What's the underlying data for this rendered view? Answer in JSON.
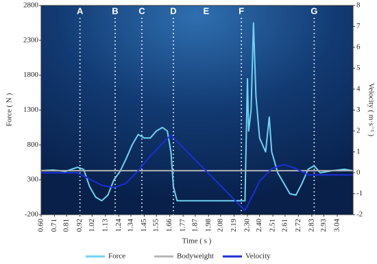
{
  "chart_data": {
    "type": "line",
    "x_label": "Time ( s )",
    "y_label": "Force ( N )",
    "y2_label": "Velocity ( m·s⁻¹ )",
    "xlim": [
      0.6,
      3.17
    ],
    "xticks": [
      {
        "value": 0.6,
        "label": "0.60"
      },
      {
        "value": 0.71,
        "label": "0.71"
      },
      {
        "value": 0.81,
        "label": "0.81"
      },
      {
        "value": 0.92,
        "label": "0.92"
      },
      {
        "value": 1.02,
        "label": "1.02"
      },
      {
        "value": 1.13,
        "label": "1.13"
      },
      {
        "value": 1.24,
        "label": "1.24"
      },
      {
        "value": 1.34,
        "label": "1.34"
      },
      {
        "value": 1.45,
        "label": "1.45"
      },
      {
        "value": 1.55,
        "label": "1.55"
      },
      {
        "value": 1.66,
        "label": "1.66"
      },
      {
        "value": 1.77,
        "label": "1.77"
      },
      {
        "value": 1.87,
        "label": "1.87"
      },
      {
        "value": 1.98,
        "label": "1.98"
      },
      {
        "value": 2.08,
        "label": "2.08"
      },
      {
        "value": 2.19,
        "label": "2.19"
      },
      {
        "value": 2.3,
        "label": "2.30"
      },
      {
        "value": 2.4,
        "label": "2.40"
      },
      {
        "value": 2.51,
        "label": "2.51"
      },
      {
        "value": 2.61,
        "label": "2.61"
      },
      {
        "value": 2.72,
        "label": "2.72"
      },
      {
        "value": 2.83,
        "label": "2.83"
      },
      {
        "value": 2.93,
        "label": "2.93"
      },
      {
        "value": 3.04,
        "label": "3.04"
      }
    ],
    "ylim": [
      -200,
      2800
    ],
    "yticks": [
      -200,
      300,
      800,
      1300,
      1800,
      2300,
      2800
    ],
    "y2lim": [
      -2,
      8
    ],
    "y2ticks": [
      -2,
      -1,
      0,
      1,
      2,
      3,
      4,
      5,
      6,
      7,
      8
    ],
    "phases": [
      {
        "label": "A",
        "x": 0.92,
        "line": true
      },
      {
        "label": "B",
        "x": 1.21,
        "line": true
      },
      {
        "label": "C",
        "x": 1.43,
        "line": true
      },
      {
        "label": "D",
        "x": 1.69,
        "line": true
      },
      {
        "label": "E",
        "x": 1.96,
        "line": false
      },
      {
        "label": "F",
        "x": 2.25,
        "line": true
      },
      {
        "label": "G",
        "x": 2.85,
        "line": true
      }
    ],
    "series": [
      {
        "name": "Force",
        "color": "#6fd3f2",
        "x": [
          0.6,
          0.7,
          0.8,
          0.9,
          0.95,
          1.0,
          1.05,
          1.1,
          1.15,
          1.2,
          1.25,
          1.3,
          1.35,
          1.4,
          1.45,
          1.5,
          1.55,
          1.6,
          1.64,
          1.67,
          1.69,
          1.72,
          2.28,
          2.3,
          2.31,
          2.33,
          2.35,
          2.37,
          2.4,
          2.45,
          2.48,
          2.5,
          2.55,
          2.6,
          2.65,
          2.7,
          2.75,
          2.8,
          2.85,
          2.9,
          3.0,
          3.1,
          3.17
        ],
        "values": [
          430,
          440,
          420,
          480,
          450,
          200,
          50,
          0,
          80,
          300,
          420,
          600,
          800,
          950,
          900,
          900,
          1000,
          1050,
          1000,
          700,
          200,
          0,
          0,
          1750,
          1000,
          1300,
          2550,
          1500,
          900,
          700,
          1200,
          700,
          400,
          250,
          100,
          80,
          250,
          450,
          500,
          400,
          430,
          450,
          430
        ]
      },
      {
        "name": "Bodyweight",
        "color": "#b4b4b4",
        "x": [
          0.6,
          3.17
        ],
        "values": [
          430,
          430
        ]
      },
      {
        "name": "Velocity",
        "color": "#1a2fd8",
        "axis": "y2",
        "x": [
          0.6,
          0.9,
          1.0,
          1.1,
          1.2,
          1.3,
          1.4,
          1.5,
          1.6,
          1.67,
          2.28,
          2.35,
          2.4,
          2.5,
          2.6,
          2.7,
          2.8,
          2.9,
          3.0,
          3.17
        ],
        "values": [
          0,
          0,
          -0.3,
          -0.6,
          -0.7,
          -0.5,
          0.1,
          0.8,
          1.4,
          1.8,
          -1.8,
          -1.0,
          -0.4,
          0.2,
          0.4,
          0.2,
          -0.1,
          -0.1,
          -0.1,
          -0.1
        ]
      }
    ]
  }
}
